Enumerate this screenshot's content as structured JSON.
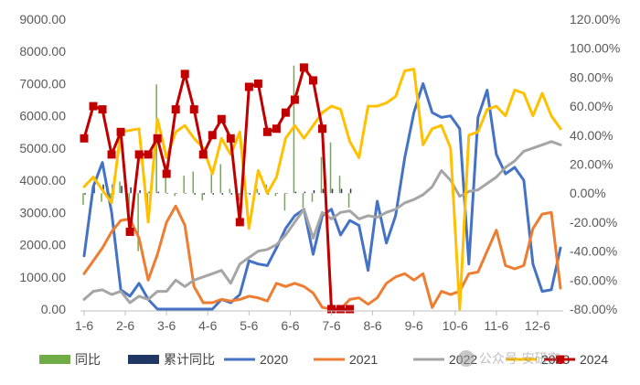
{
  "chart_data": {
    "type": "line",
    "title": "",
    "xlabel": "",
    "ylabel": "",
    "x_tick_labels": [
      "1-6",
      "2-6",
      "3-6",
      "4-6",
      "5-6",
      "6-6",
      "7-6",
      "8-6",
      "9-6",
      "10-6",
      "11-6",
      "12-6"
    ],
    "x_range": [
      1,
      53
    ],
    "ylim_left": [
      0,
      9000
    ],
    "ylim_right": [
      -80,
      120
    ],
    "left_ticks": [
      "0.00",
      "1000.00",
      "2000.00",
      "3000.00",
      "4000.00",
      "5000.00",
      "6000.00",
      "7000.00",
      "8000.00",
      "9000.00"
    ],
    "right_ticks": [
      "-80.00%",
      "-60.00%",
      "-40.00%",
      "-20.00%",
      "0.00%",
      "20.00%",
      "40.00%",
      "60.00%",
      "80.00%",
      "100.00%",
      "120.00%"
    ],
    "grid": false,
    "legend_position": "bottom",
    "series": [
      {
        "name": "同比",
        "axis": "right",
        "kind": "bar",
        "color": "#70AD47",
        "x": [
          1,
          2,
          3,
          4,
          5,
          6,
          7,
          8,
          9,
          10,
          11,
          12,
          13,
          14,
          15,
          16,
          17,
          18,
          19,
          20,
          21,
          22,
          23,
          24,
          25,
          26,
          27,
          28,
          29,
          30
        ],
        "y": [
          -8,
          -2,
          -6,
          -10,
          8,
          -14,
          -40,
          -10,
          75,
          20,
          -2,
          12,
          15,
          -5,
          15,
          20,
          3,
          -5,
          0,
          3,
          6,
          -2,
          -12,
          88,
          -10,
          -6,
          25,
          35,
          12,
          -10
        ]
      },
      {
        "name": "累计同比",
        "axis": "right",
        "kind": "bar",
        "color": "#203864",
        "x": [
          1,
          2,
          3,
          4,
          5,
          6,
          7,
          8,
          9,
          10,
          11,
          12,
          13,
          14,
          15,
          16,
          17,
          18,
          19,
          20,
          21,
          22,
          23,
          24,
          25,
          26,
          27,
          28,
          29,
          30
        ],
        "y": [
          -1,
          5,
          6,
          6,
          5,
          4,
          2,
          1,
          1,
          0,
          0,
          0,
          -1,
          -1,
          -1,
          -1,
          -1,
          -1,
          -1,
          -1,
          -1,
          0,
          0,
          1,
          1,
          2,
          3,
          3,
          3,
          3
        ]
      },
      {
        "name": "2020",
        "axis": "left",
        "kind": "line",
        "color": "#4472C4",
        "x": [
          1,
          2,
          3,
          4,
          5,
          6,
          7,
          8,
          9,
          10,
          11,
          12,
          13,
          14,
          15,
          16,
          17,
          18,
          19,
          20,
          21,
          22,
          23,
          24,
          25,
          26,
          27,
          28,
          29,
          30,
          31,
          32,
          33,
          34,
          35,
          36,
          37,
          38,
          39,
          40,
          41,
          42,
          43,
          44,
          45,
          46,
          47,
          48,
          49,
          50,
          51,
          52,
          53
        ],
        "y": [
          1650,
          3800,
          4550,
          3000,
          600,
          400,
          800,
          300,
          0,
          0,
          0,
          0,
          0,
          0,
          0,
          300,
          200,
          450,
          1500,
          1400,
          1350,
          1900,
          2500,
          2900,
          3100,
          1700,
          2900,
          3100,
          2300,
          2750,
          2600,
          1200,
          3350,
          2050,
          2900,
          4700,
          6100,
          7000,
          6100,
          5950,
          6000,
          5600,
          1400,
          5950,
          6800,
          4800,
          4200,
          4400,
          4000,
          1400,
          550,
          600,
          1900
        ]
      },
      {
        "name": "2021",
        "axis": "left",
        "kind": "line",
        "color": "#ED7D31",
        "x": [
          1,
          2,
          3,
          4,
          5,
          6,
          7,
          8,
          9,
          10,
          11,
          12,
          13,
          14,
          15,
          16,
          17,
          18,
          19,
          20,
          21,
          22,
          23,
          24,
          25,
          26,
          27,
          28,
          29,
          30,
          31,
          32,
          33,
          34,
          35,
          36,
          37,
          38,
          39,
          40,
          41,
          42,
          43,
          44,
          45,
          46,
          47,
          48,
          49,
          50,
          51,
          52,
          53
        ],
        "y": [
          1100,
          1500,
          1900,
          2400,
          2750,
          2800,
          2200,
          900,
          1700,
          2700,
          3200,
          2600,
          700,
          200,
          200,
          300,
          250,
          300,
          400,
          350,
          250,
          800,
          700,
          800,
          700,
          500,
          50,
          0,
          0,
          300,
          350,
          150,
          350,
          800,
          1000,
          1100,
          900,
          1100,
          50,
          550,
          450,
          550,
          1100,
          1150,
          1800,
          2450,
          1350,
          1250,
          1350,
          2500,
          2950,
          3000,
          650
        ]
      },
      {
        "name": "2022",
        "axis": "left",
        "kind": "line",
        "color": "#A5A5A5",
        "x": [
          1,
          2,
          3,
          4,
          5,
          6,
          7,
          8,
          9,
          10,
          11,
          12,
          13,
          14,
          15,
          16,
          17,
          18,
          19,
          20,
          21,
          22,
          23,
          24,
          25,
          26,
          27,
          28,
          29,
          30,
          31,
          32,
          33,
          34,
          35,
          36,
          37,
          38,
          39,
          40,
          41,
          42,
          43,
          44,
          45,
          46,
          47,
          48,
          49,
          50,
          51,
          52,
          53
        ],
        "y": [
          300,
          550,
          600,
          450,
          550,
          200,
          400,
          300,
          550,
          550,
          900,
          700,
          900,
          1000,
          1100,
          1200,
          800,
          1400,
          1600,
          1800,
          1850,
          2000,
          2300,
          2700,
          3100,
          2200,
          3000,
          2800,
          3000,
          3050,
          2800,
          2900,
          2850,
          3000,
          3100,
          3300,
          3400,
          3550,
          3800,
          4300,
          4000,
          3500,
          3650,
          3700,
          3900,
          4100,
          4400,
          4600,
          4900,
          5000,
          5100,
          5200,
          5100
        ]
      },
      {
        "name": "2023",
        "axis": "left",
        "kind": "line",
        "color": "#FFC000",
        "x": [
          1,
          2,
          3,
          4,
          5,
          6,
          7,
          8,
          9,
          10,
          11,
          12,
          13,
          14,
          15,
          16,
          17,
          18,
          19,
          20,
          21,
          22,
          23,
          24,
          25,
          26,
          27,
          28,
          29,
          30,
          31,
          32,
          33,
          34,
          35,
          36,
          37,
          38,
          39,
          40,
          41,
          42,
          43,
          44,
          45,
          46,
          47,
          48,
          49,
          50,
          51,
          52,
          53
        ],
        "y": [
          3800,
          4100,
          3700,
          3300,
          5500,
          5550,
          5600,
          2700,
          5900,
          4700,
          5500,
          5700,
          5300,
          5000,
          4200,
          5300,
          4800,
          5500,
          2500,
          4300,
          3600,
          4100,
          5300,
          5700,
          5300,
          5700,
          6100,
          6300,
          6200,
          5200,
          4700,
          6300,
          6300,
          6400,
          6600,
          7400,
          7450,
          5100,
          5600,
          5700,
          5000,
          0,
          5400,
          5500,
          6200,
          6300,
          6000,
          6800,
          6700,
          6000,
          6700,
          6000,
          5600
        ]
      },
      {
        "name": "2024",
        "axis": "left",
        "kind": "line",
        "color": "#C00000",
        "x": [
          1,
          2,
          3,
          4,
          5,
          6,
          7,
          8,
          9,
          10,
          11,
          12,
          13,
          14,
          15,
          16,
          17,
          18,
          19,
          20,
          21,
          22,
          23,
          24,
          25,
          26,
          27,
          28,
          29,
          30
        ],
        "y": [
          5300,
          6300,
          6200,
          4800,
          5500,
          2400,
          4800,
          4800,
          5300,
          4200,
          6200,
          7300,
          6200,
          4800,
          5400,
          5900,
          5300,
          2700,
          6900,
          7000,
          5500,
          5600,
          6100,
          6500,
          7500,
          7100,
          5600,
          0,
          0,
          0
        ]
      }
    ]
  },
  "legend": {
    "labels": [
      "同比",
      "累计同比",
      "2020",
      "2021",
      "2022",
      "2023",
      "2024"
    ]
  },
  "watermark": {
    "text": "公众号·安研究"
  }
}
